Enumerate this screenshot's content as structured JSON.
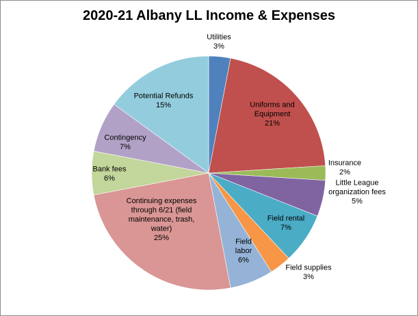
{
  "chart_data": {
    "type": "pie",
    "title": "2020-21  Albany LL Income & Expenses",
    "slices": [
      {
        "label": "Utilities",
        "percent_text": "3%",
        "value": 3,
        "color": "#4f81bd"
      },
      {
        "label": "Uniforms and Equipment",
        "percent_text": "21%",
        "value": 21,
        "color": "#c0504d"
      },
      {
        "label": "Insurance",
        "percent_text": "2%",
        "value": 2,
        "color": "#9bbb59"
      },
      {
        "label": "Little League organization  fees",
        "percent_text": "5%",
        "value": 5,
        "color": "#8064a2"
      },
      {
        "label": "Field rental",
        "percent_text": "7%",
        "value": 7,
        "color": "#4bacc6"
      },
      {
        "label": "Field supplies",
        "percent_text": "3%",
        "value": 3,
        "color": "#f79646"
      },
      {
        "label": "Field labor",
        "percent_text": "6%",
        "value": 6,
        "color": "#95b3d7"
      },
      {
        "label": "Continuing expenses through 6/21 (field maintenance, trash, water)",
        "percent_text": "25%",
        "value": 25,
        "color": "#d99694"
      },
      {
        "label": "Bank fees",
        "percent_text": "6%",
        "value": 6,
        "color": "#c3d69b"
      },
      {
        "label": "Contingency",
        "percent_text": "7%",
        "value": 7,
        "color": "#b2a1c7"
      },
      {
        "label": "Potential Refunds",
        "percent_text": "15%",
        "value": 15,
        "color": "#93cddd"
      }
    ]
  }
}
